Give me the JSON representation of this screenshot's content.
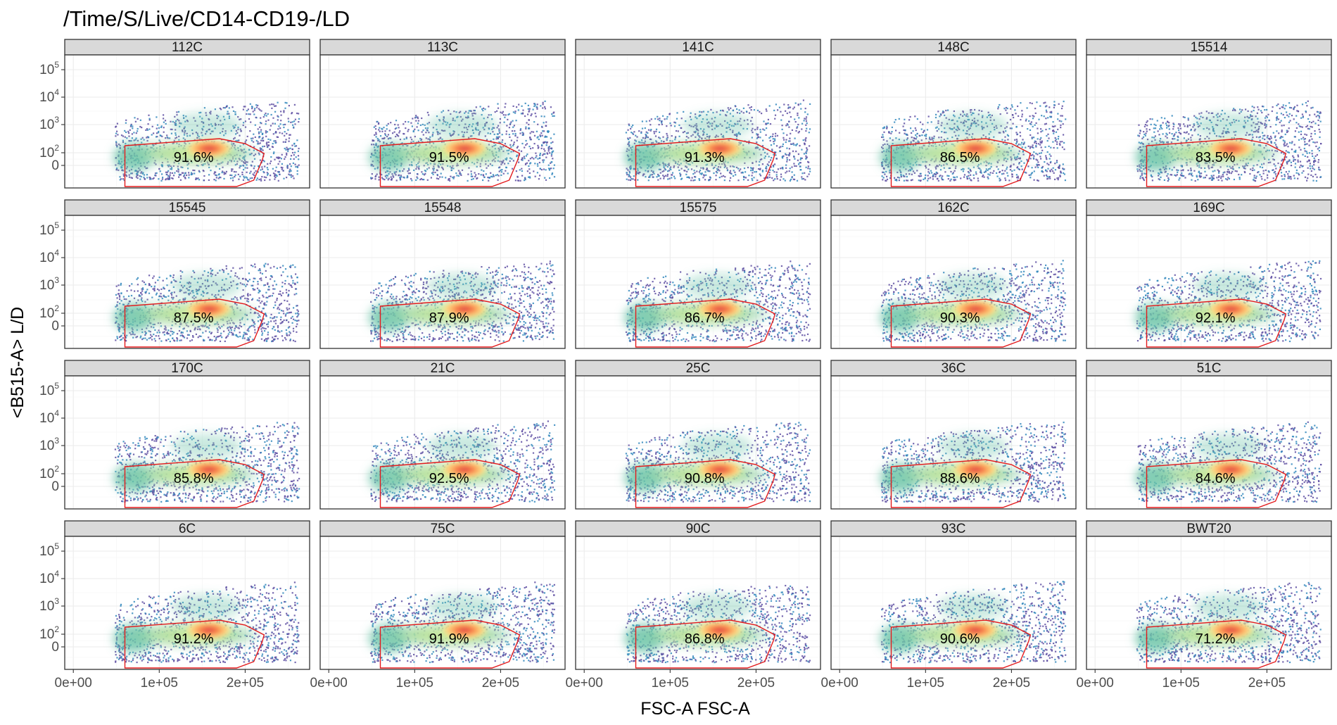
{
  "chart_data": {
    "type": "scatter",
    "subtype": "faceted flow cytometry density plots with gate",
    "title": "/Time/S/Live/CD14-CD19-/LD",
    "xlabel": "FSC-A FSC-A",
    "ylabel": "<B515-A> L/D",
    "x_ticks": [
      {
        "value": 0,
        "label": "0e+00"
      },
      {
        "value": 100000,
        "label": "1e+05"
      },
      {
        "value": 200000,
        "label": "2e+05"
      }
    ],
    "y_ticks": [
      {
        "value": "0",
        "base": "0",
        "exp": ""
      },
      {
        "value": "1e2",
        "base": "10",
        "exp": "2"
      },
      {
        "value": "1e3",
        "base": "10",
        "exp": "3"
      },
      {
        "value": "1e4",
        "base": "10",
        "exp": "4"
      },
      {
        "value": "1e5",
        "base": "10",
        "exp": "5"
      }
    ],
    "xlim": [
      -10000,
      275000
    ],
    "gate_color": "#e31a1c",
    "density_palette": [
      "#5e4fa2",
      "#3288bd",
      "#66c2a5",
      "#abdda4",
      "#e6f598",
      "#fee08b",
      "#fdae61",
      "#f46d43",
      "#d53e4f"
    ],
    "panels": [
      {
        "label": "112C",
        "value": "91.6%"
      },
      {
        "label": "113C",
        "value": "91.5%"
      },
      {
        "label": "141C",
        "value": "91.3%"
      },
      {
        "label": "148C",
        "value": "86.5%"
      },
      {
        "label": "15514",
        "value": "83.5%"
      },
      {
        "label": "15545",
        "value": "87.5%"
      },
      {
        "label": "15548",
        "value": "87.9%"
      },
      {
        "label": "15575",
        "value": "86.7%"
      },
      {
        "label": "162C",
        "value": "90.3%"
      },
      {
        "label": "169C",
        "value": "92.1%"
      },
      {
        "label": "170C",
        "value": "85.8%"
      },
      {
        "label": "21C",
        "value": "92.5%"
      },
      {
        "label": "25C",
        "value": "90.8%"
      },
      {
        "label": "36C",
        "value": "88.6%"
      },
      {
        "label": "51C",
        "value": "84.6%"
      },
      {
        "label": "6C",
        "value": "91.2%"
      },
      {
        "label": "75C",
        "value": "91.9%"
      },
      {
        "label": "90C",
        "value": "86.8%"
      },
      {
        "label": "93C",
        "value": "90.6%"
      },
      {
        "label": "BWT20",
        "value": "71.2%"
      }
    ]
  }
}
